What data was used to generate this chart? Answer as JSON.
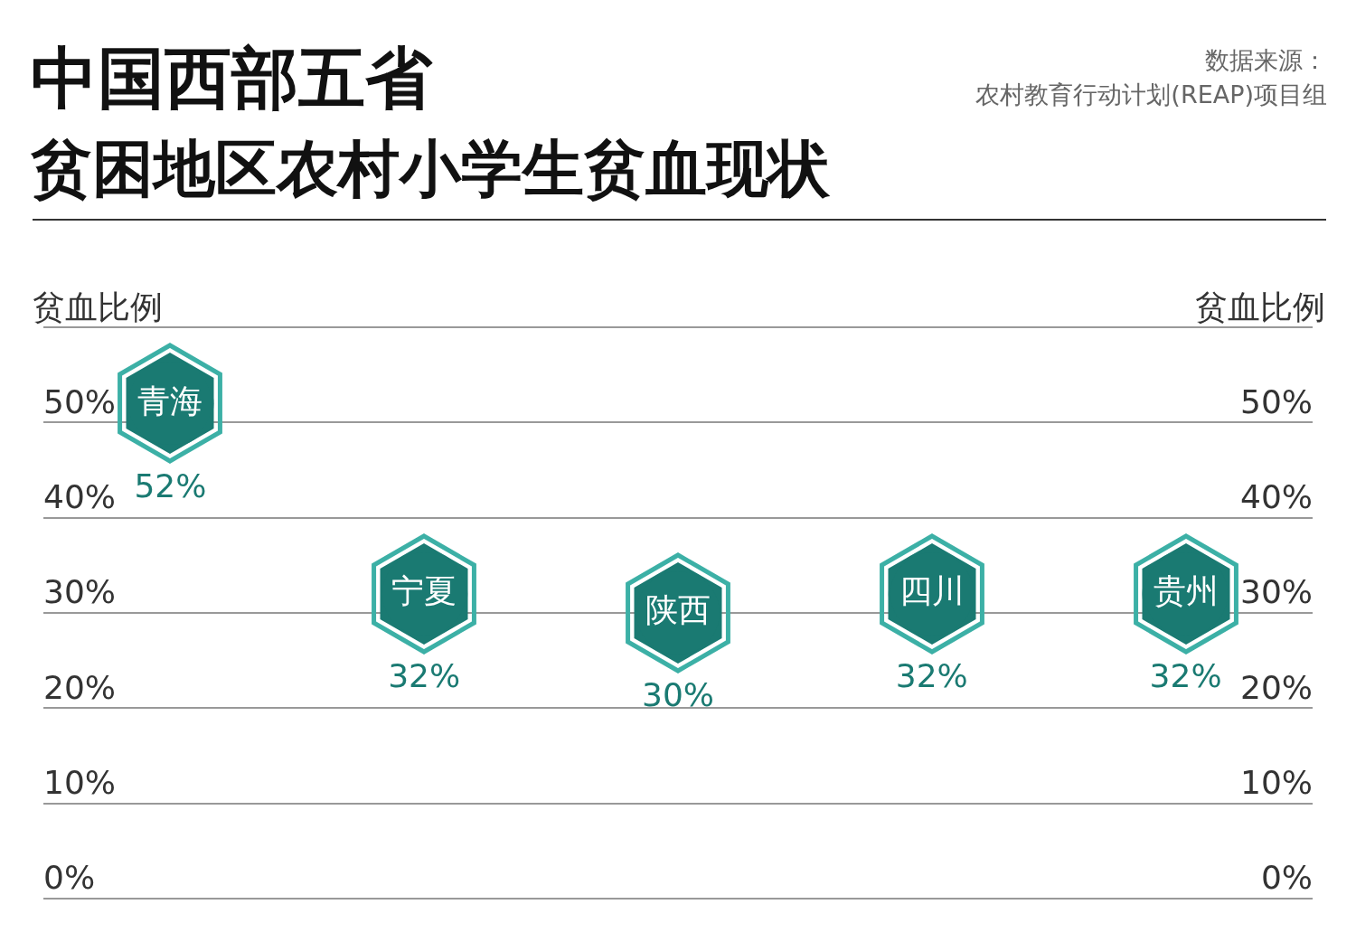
{
  "chart_data": {
    "type": "scatter",
    "title": "中国西部五省",
    "subtitle": "贫困地区农村小学生贫血现状",
    "ylabel": "贫血比例",
    "y2label": "贫血比例",
    "annotations": [
      "数据来源：",
      "农村教育行动计划(REAP)项目组"
    ],
    "categories": [
      "青海",
      "宁夏",
      "陕西",
      "四川",
      "贵州"
    ],
    "series": [
      {
        "color": "#1a7a72",
        "values": [
          52,
          32,
          30,
          32,
          32
        ],
        "value_labels": [
          "52%",
          "32%",
          "30%",
          "32%",
          "32%"
        ]
      }
    ],
    "ylim": [
      0,
      60
    ],
    "yticks": [
      {
        "value": 0,
        "label": "0%"
      },
      {
        "value": 10,
        "label": "10%"
      },
      {
        "value": 20,
        "label": "20%"
      },
      {
        "value": 30,
        "label": "30%"
      },
      {
        "value": 40,
        "label": "40%"
      },
      {
        "value": 50,
        "label": "50%"
      },
      {
        "value": 60,
        "label": null
      }
    ],
    "y2lim": [
      0,
      60
    ],
    "y2ticks": [
      {
        "value": 0,
        "label": "0%"
      },
      {
        "value": 10,
        "label": "10%"
      },
      {
        "value": 20,
        "label": "20%"
      },
      {
        "value": 30,
        "label": "30%"
      },
      {
        "value": 40,
        "label": "40%"
      },
      {
        "value": 50,
        "label": "50%"
      },
      {
        "value": 60,
        "label": null
      }
    ],
    "grid": "y",
    "legend": false,
    "tick_labels": "y"
  }
}
